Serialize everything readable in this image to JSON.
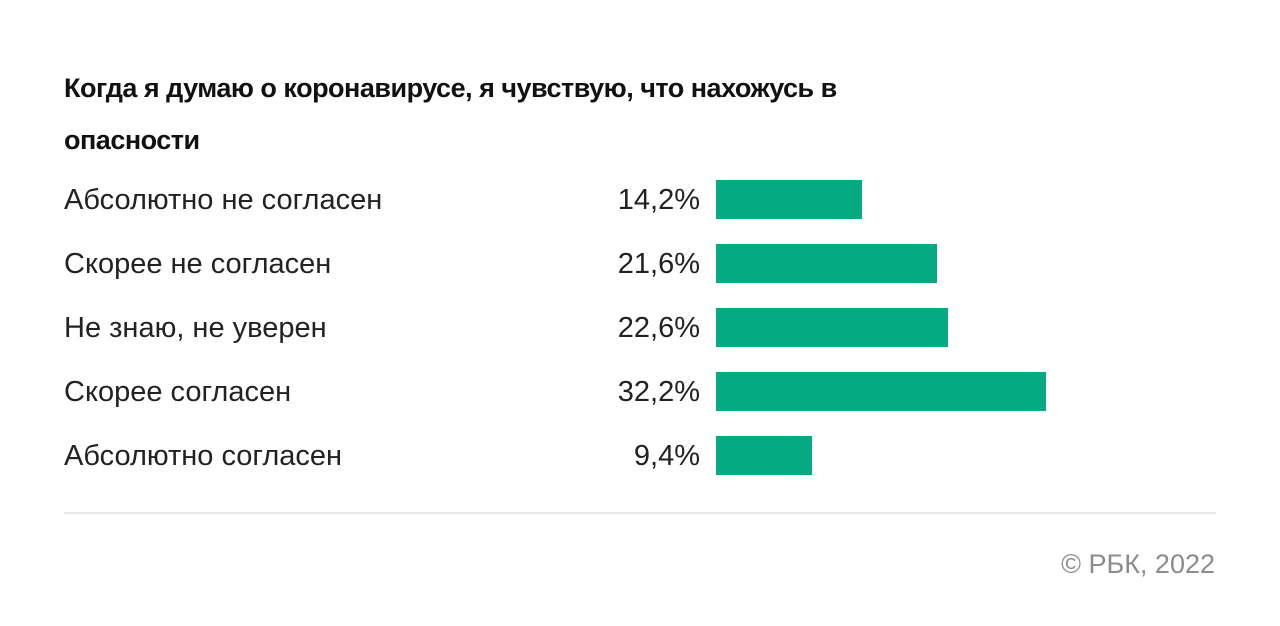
{
  "title": "Когда я думаю о коронавирусе, я чувствую, что нахожусь в опасности",
  "rows": [
    {
      "label": "Абсолютно не согласен",
      "value_text": "14,2%",
      "value": 14.2
    },
    {
      "label": "Скорее не согласен",
      "value_text": "21,6%",
      "value": 21.6
    },
    {
      "label": "Не знаю, не уверен",
      "value_text": "22,6%",
      "value": 22.6
    },
    {
      "label": "Скорее согласен",
      "value_text": "32,2%",
      "value": 32.2
    },
    {
      "label": "Абсолютно согласен",
      "value_text": "9,4%",
      "value": 9.4
    }
  ],
  "credit": "© РБК, 2022",
  "colors": {
    "bar": "#05a982"
  },
  "chart_data": {
    "type": "bar",
    "orientation": "horizontal",
    "title": "Когда я думаю о коронавирусе, я чувствую, что нахожусь в опасности",
    "categories": [
      "Абсолютно не согласен",
      "Скорее не согласен",
      "Не знаю, не уверен",
      "Скорее согласен",
      "Абсолютно согласен"
    ],
    "values": [
      14.2,
      21.6,
      22.6,
      32.2,
      9.4
    ],
    "unit": "%",
    "xlabel": "",
    "ylabel": "",
    "grid": false,
    "legend": null,
    "source": "© РБК, 2022"
  }
}
